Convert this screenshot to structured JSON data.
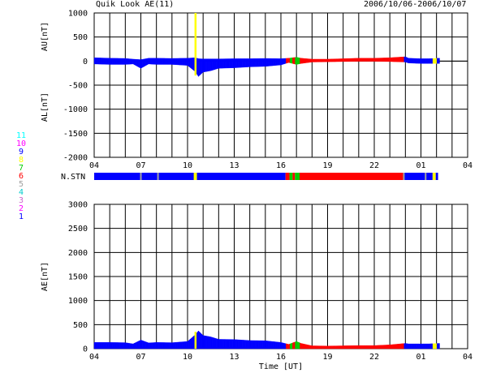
{
  "header": {
    "title": "Quik Look AE(11)",
    "date_range": "2006/10/06-2006/10/07"
  },
  "legend": {
    "items": [
      {
        "label": "11",
        "color": "#00ffff"
      },
      {
        "label": "10",
        "color": "#ff00ff"
      },
      {
        "label": "9",
        "color": "#0000ff"
      },
      {
        "label": "8",
        "color": "#ffff00"
      },
      {
        "label": "7",
        "color": "#00cc00"
      },
      {
        "label": "6",
        "color": "#ff0000"
      },
      {
        "label": "5",
        "color": "#a0a0a0"
      },
      {
        "label": "4",
        "color": "#00cccc"
      },
      {
        "label": "3",
        "color": "#cc66cc"
      },
      {
        "label": "2",
        "color": "#ff00ff"
      },
      {
        "label": "1",
        "color": "#0000ff"
      }
    ]
  },
  "colors": {
    "stn_1": "#0000ff",
    "stn_6": "#ff0000",
    "stn_7": "#00cc00",
    "stn_8": "#ffff00",
    "stn_5": "#a0a0a0"
  },
  "chart_data": [
    {
      "type": "area",
      "panel": "AU/AL",
      "ylabel_top": "AU[nT]",
      "ylabel_bottom": "AL[nT]",
      "ylim": [
        -2000,
        1000
      ],
      "yticks": [
        1000,
        500,
        0,
        -500,
        -1000,
        -1500,
        -2000
      ],
      "xlim": [
        4,
        28
      ],
      "xticks": [
        "04",
        "07",
        "10",
        "13",
        "16",
        "19",
        "22",
        "01",
        "04"
      ],
      "grid": true,
      "series": [
        {
          "values_x": [
            4,
            5,
            6,
            6.5,
            7,
            7.5,
            8,
            9,
            10,
            10.5,
            10.7,
            11,
            11.5,
            12,
            13,
            14,
            15,
            16,
            16.5,
            17,
            17.3,
            18,
            19,
            20,
            21,
            22,
            23,
            24,
            24.2,
            25,
            25.5,
            26.2
          ],
          "au": [
            70,
            60,
            55,
            40,
            30,
            60,
            60,
            55,
            60,
            70,
            50,
            45,
            45,
            45,
            50,
            50,
            55,
            50,
            60,
            80,
            60,
            40,
            40,
            50,
            60,
            60,
            70,
            90,
            60,
            50,
            50,
            60
          ],
          "al": [
            -60,
            -70,
            -70,
            -60,
            -150,
            -60,
            -70,
            -70,
            -90,
            -220,
            -320,
            -230,
            -200,
            -150,
            -140,
            -120,
            -110,
            -80,
            -30,
            -70,
            -50,
            -20,
            -15,
            -10,
            -5,
            -5,
            -10,
            -20,
            -40,
            -50,
            -50,
            -50
          ]
        }
      ]
    },
    {
      "type": "bar",
      "panel": "N.STN",
      "label": "N.STN",
      "segments": [
        {
          "start": 4,
          "end": 16.3,
          "station": "1"
        },
        {
          "start": 16.3,
          "end": 16.55,
          "station": "6"
        },
        {
          "start": 16.55,
          "end": 16.75,
          "station": "7"
        },
        {
          "start": 16.75,
          "end": 16.9,
          "station": "6"
        },
        {
          "start": 16.9,
          "end": 17.2,
          "station": "7"
        },
        {
          "start": 17.2,
          "end": 23.9,
          "station": "6"
        },
        {
          "start": 23.9,
          "end": 25.75,
          "station": "1"
        },
        {
          "start": 25.75,
          "end": 25.95,
          "station": "8"
        },
        {
          "start": 25.95,
          "end": 26.1,
          "station": "1"
        }
      ],
      "markers": [
        {
          "x": 7.0,
          "station": "5"
        },
        {
          "x": 8.1,
          "station": "5"
        },
        {
          "x": 10.45,
          "station": "8"
        },
        {
          "x": 10.55,
          "station": "8"
        },
        {
          "x": 23.9,
          "station": "5"
        },
        {
          "x": 25.3,
          "station": "5"
        }
      ]
    },
    {
      "type": "area",
      "panel": "AE",
      "ylabel": "AE[nT]",
      "xlabel": "Time [UT]",
      "ylim": [
        0,
        3000
      ],
      "yticks": [
        3000,
        2500,
        2000,
        1500,
        1000,
        500,
        0
      ],
      "xlim": [
        4,
        28
      ],
      "xticks": [
        "04",
        "07",
        "10",
        "13",
        "16",
        "19",
        "22",
        "01",
        "04"
      ],
      "grid": true,
      "series": [
        {
          "x": [
            4,
            5,
            6,
            6.5,
            7,
            7.5,
            8,
            9,
            10,
            10.5,
            10.7,
            11,
            11.5,
            12,
            13,
            14,
            15,
            16,
            16.5,
            17,
            17.3,
            18,
            19,
            20,
            21,
            22,
            23,
            24,
            24.2,
            25,
            25.5,
            26.2
          ],
          "values": [
            130,
            130,
            125,
            100,
            180,
            120,
            130,
            125,
            150,
            290,
            370,
            275,
            245,
            195,
            190,
            170,
            165,
            130,
            90,
            150,
            110,
            60,
            55,
            60,
            65,
            65,
            80,
            110,
            100,
            100,
            100,
            110
          ]
        }
      ]
    }
  ]
}
